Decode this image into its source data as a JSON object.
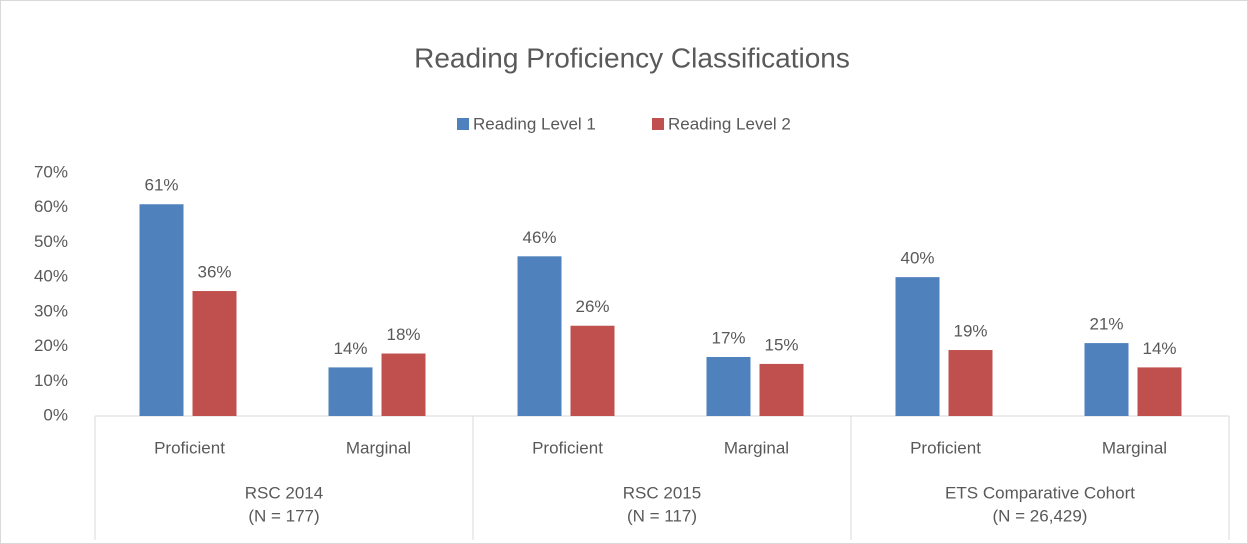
{
  "chart_data": {
    "type": "bar",
    "title": "Reading Proficiency Classifications",
    "categories": [
      "Proficient",
      "Marginal",
      "Proficient",
      "Marginal",
      "Proficient",
      "Marginal"
    ],
    "groups": [
      [
        "RSC 2014",
        "(N = 177)"
      ],
      [
        "RSC 2015",
        "(N = 117)"
      ],
      [
        "ETS Comparative Cohort",
        "(N = 26,429)"
      ]
    ],
    "series": [
      {
        "name": "Reading Level 1",
        "color": "#4f81bd",
        "values": [
          61,
          14,
          46,
          17,
          40,
          21
        ],
        "value_labels": [
          "61%",
          "14%",
          "46%",
          "17%",
          "40%",
          "21%"
        ]
      },
      {
        "name": "Reading Level 2",
        "color": "#c0504d",
        "values": [
          36,
          18,
          26,
          15,
          19,
          14
        ],
        "value_labels": [
          "36%",
          "18%",
          "26%",
          "15%",
          "19%",
          "14%"
        ]
      }
    ],
    "ylim": [
      0,
      70
    ],
    "yticks": [
      {
        "value": 0,
        "label": "0%"
      },
      {
        "value": 10,
        "label": "10%"
      },
      {
        "value": 20,
        "label": "20%"
      },
      {
        "value": 30,
        "label": "30%"
      },
      {
        "value": 40,
        "label": "40%"
      },
      {
        "value": 50,
        "label": "50%"
      },
      {
        "value": 60,
        "label": "60%"
      },
      {
        "value": 70,
        "label": "70%"
      }
    ],
    "grid": false,
    "legend": "top"
  }
}
